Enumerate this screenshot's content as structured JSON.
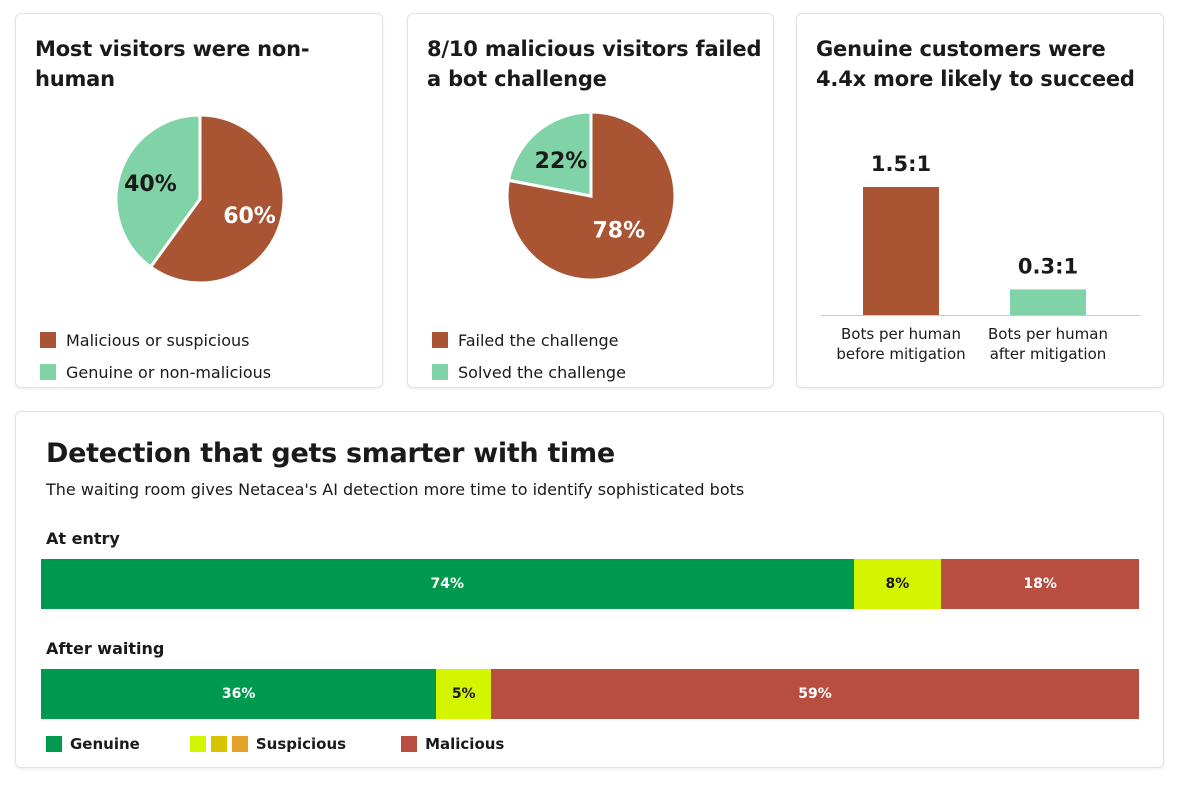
{
  "colors": {
    "malicious_brown": "#A95534",
    "genuine_mint": "#7FD3A6",
    "genuine_green": "#009A4E",
    "suspicious_lime": "#D4F500",
    "suspicious_yellow": "#D9C300",
    "suspicious_orange": "#E4A22A",
    "malicious_red": "#B74E40"
  },
  "cards": {
    "visitors": {
      "title": "Most visitors were non-human"
    },
    "challenge": {
      "title": "8/10 malicious visitors failed a bot challenge"
    },
    "customers": {
      "title": "Genuine customers were 4.4x more likely to succeed"
    }
  },
  "detection": {
    "title": "Detection that gets smarter with time",
    "subtitle": "The waiting room gives Netacea's AI detection more time to identify sophisticated bots"
  },
  "chart_data": [
    {
      "type": "pie",
      "title": "Most visitors were non-human",
      "labels": [
        "Malicious or suspicious",
        "Genuine or non-malicious"
      ],
      "values": [
        60,
        40
      ],
      "value_labels": [
        "60%",
        "40%"
      ],
      "colors": [
        "#A95534",
        "#7FD3A6"
      ],
      "legend": "bottom"
    },
    {
      "type": "pie",
      "title": "8/10 malicious visitors failed a bot challenge",
      "labels": [
        "Failed the challenge",
        "Solved the challenge"
      ],
      "values": [
        78,
        22
      ],
      "value_labels": [
        "78%",
        "22%"
      ],
      "colors": [
        "#A95534",
        "#7FD3A6"
      ],
      "legend": "bottom"
    },
    {
      "type": "bar",
      "title": "Genuine customers were 4.4x more likely to succeed",
      "categories": [
        "Bots per human before mitigation",
        "Bots per human after mitigation"
      ],
      "category_lines": [
        [
          "Bots per human",
          "before mitigation"
        ],
        [
          "Bots per human",
          "after mitigation"
        ]
      ],
      "values": [
        1.5,
        0.3
      ],
      "value_labels": [
        "1.5:1",
        "0.3:1"
      ],
      "colors": [
        "#A95534",
        "#7FD3A6"
      ],
      "ylim": [
        0,
        1.5
      ]
    },
    {
      "type": "bar",
      "orientation": "horizontal-stacked",
      "title": "Detection that gets smarter with time",
      "categories": [
        "At entry",
        "After waiting"
      ],
      "series": [
        {
          "name": "Genuine",
          "values": [
            74,
            36
          ],
          "labels": [
            "74%",
            "36%"
          ],
          "color": "#009A4E",
          "text_color": "#ffffff"
        },
        {
          "name": "Suspicious",
          "values": [
            8,
            5
          ],
          "labels": [
            "8%",
            "5%"
          ],
          "color": "#D4F500",
          "text_color": "#1a1a1a"
        },
        {
          "name": "Malicious",
          "values": [
            18,
            59
          ],
          "labels": [
            "18%",
            "59%"
          ],
          "color": "#B74E40",
          "text_color": "#ffffff"
        }
      ],
      "legend": {
        "items": [
          {
            "name": "Genuine",
            "colors": [
              "#009A4E"
            ]
          },
          {
            "name": "Suspicious",
            "colors": [
              "#D4F500",
              "#D9C300",
              "#E4A22A"
            ]
          },
          {
            "name": "Malicious",
            "colors": [
              "#B74E40"
            ]
          }
        ],
        "placement": "bottom-left"
      }
    }
  ]
}
